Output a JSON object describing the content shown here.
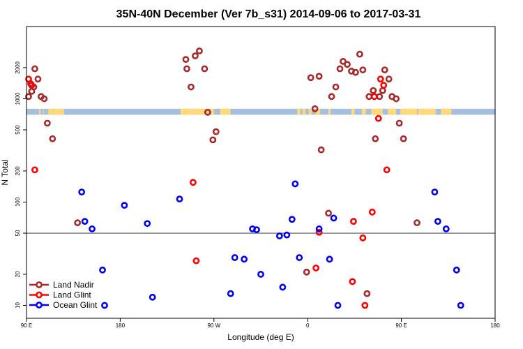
{
  "chart_data": {
    "type": "scatter",
    "title": "35N-40N December (Ver 7b_s31)   2014-09-06 to 2017-03-31",
    "xlabel": "Longitude (deg E)",
    "ylabel": "N Total",
    "x_ticks": [
      {
        "value": 90,
        "label": "90 E"
      },
      {
        "value": 180,
        "label": "180"
      },
      {
        "value": 270,
        "label": "90 W"
      },
      {
        "value": 360,
        "label": "0"
      },
      {
        "value": 450,
        "label": "90 E"
      },
      {
        "value": 540,
        "label": "180"
      }
    ],
    "xlim": [
      90,
      540
    ],
    "y_scale": "log",
    "ylim": [
      7.5,
      5000
    ],
    "y_ticks": [
      {
        "value": 10,
        "label": "10"
      },
      {
        "value": 20,
        "label": "20"
      },
      {
        "value": 50,
        "label": "50"
      },
      {
        "value": 100,
        "label": "100"
      },
      {
        "value": 200,
        "label": "200"
      },
      {
        "value": 500,
        "label": "500"
      },
      {
        "value": 1000,
        "label": "1000"
      },
      {
        "value": 2000,
        "label": "2000"
      }
    ],
    "reference_line": 50,
    "land_strip": {
      "y_range": [
        700,
        800
      ],
      "ocean_color": "#a6bfdf",
      "land_color": "#ffd97a",
      "land_segments": [
        [
          102,
          103.5
        ],
        [
          106,
          106.5
        ],
        [
          112,
          116
        ],
        [
          111,
          126
        ],
        [
          238,
          270
        ],
        [
          276,
          286
        ],
        [
          350,
          353
        ],
        [
          355,
          358
        ],
        [
          361,
          364
        ],
        [
          368,
          372
        ],
        [
          380,
          382
        ],
        [
          402,
          405
        ],
        [
          412,
          416
        ],
        [
          421,
          432
        ],
        [
          437,
          445
        ],
        [
          449,
          465
        ],
        [
          466,
          483
        ],
        [
          488,
          498
        ]
      ]
    },
    "legend_position": "bottom-left",
    "series": [
      {
        "name": "Land Nadir",
        "color": "#a52a2a",
        "points": [
          [
            92,
            1050
          ],
          [
            94,
            1400
          ],
          [
            95,
            1180
          ],
          [
            97,
            1300
          ],
          [
            98,
            1950
          ],
          [
            101,
            1550
          ],
          [
            104,
            1050
          ],
          [
            107,
            1000
          ],
          [
            110,
            580
          ],
          [
            115,
            410
          ],
          [
            139,
            63
          ],
          [
            243,
            2400
          ],
          [
            244,
            1950
          ],
          [
            248,
            1300
          ],
          [
            252,
            2600
          ],
          [
            256,
            2900
          ],
          [
            261,
            1950
          ],
          [
            264,
            740
          ],
          [
            269,
            400
          ],
          [
            272,
            480
          ],
          [
            359,
            21
          ],
          [
            363,
            1600
          ],
          [
            367,
            800
          ],
          [
            371,
            1650
          ],
          [
            373,
            320
          ],
          [
            380,
            78
          ],
          [
            383,
            1050
          ],
          [
            387,
            1300
          ],
          [
            391,
            1950
          ],
          [
            394,
            2300
          ],
          [
            398,
            2150
          ],
          [
            402,
            1850
          ],
          [
            406,
            1800
          ],
          [
            410,
            2700
          ],
          [
            413,
            1900
          ],
          [
            417,
            13
          ],
          [
            419,
            1050
          ],
          [
            423,
            1200
          ],
          [
            425,
            410
          ],
          [
            429,
            1050
          ],
          [
            432,
            1200
          ],
          [
            434,
            1900
          ],
          [
            438,
            1550
          ],
          [
            441,
            1050
          ],
          [
            445,
            1000
          ],
          [
            448,
            580
          ],
          [
            452,
            410
          ],
          [
            465,
            63
          ]
        ]
      },
      {
        "name": "Land Glint",
        "color": "#ff0000",
        "points": [
          [
            92,
            1550
          ],
          [
            95,
            1350
          ],
          [
            98,
            205
          ],
          [
            250,
            155
          ],
          [
            253,
            27
          ],
          [
            368,
            23
          ],
          [
            371,
            51
          ],
          [
            403,
            17
          ],
          [
            404,
            65
          ],
          [
            413,
            45
          ],
          [
            415,
            10
          ],
          [
            422,
            80
          ],
          [
            424,
            1050
          ],
          [
            428,
            645
          ],
          [
            430,
            1550
          ],
          [
            433,
            1350
          ],
          [
            436,
            205
          ]
        ]
      },
      {
        "name": "Ocean Glint",
        "color": "#0000ee",
        "points": [
          [
            143,
            125
          ],
          [
            146,
            65
          ],
          [
            153,
            55
          ],
          [
            163,
            22
          ],
          [
            165,
            10
          ],
          [
            184,
            93
          ],
          [
            206,
            62
          ],
          [
            211,
            12
          ],
          [
            237,
            107
          ],
          [
            286,
            13
          ],
          [
            290,
            29
          ],
          [
            299,
            28
          ],
          [
            307,
            55
          ],
          [
            311,
            54
          ],
          [
            315,
            20
          ],
          [
            333,
            47
          ],
          [
            336,
            15
          ],
          [
            340,
            48
          ],
          [
            345,
            68
          ],
          [
            348,
            150
          ],
          [
            352,
            29
          ],
          [
            371,
            55
          ],
          [
            381,
            28
          ],
          [
            385,
            70
          ],
          [
            389,
            10
          ],
          [
            482,
            125
          ],
          [
            485,
            65
          ],
          [
            493,
            55
          ],
          [
            503,
            22
          ],
          [
            507,
            10
          ]
        ]
      }
    ]
  }
}
